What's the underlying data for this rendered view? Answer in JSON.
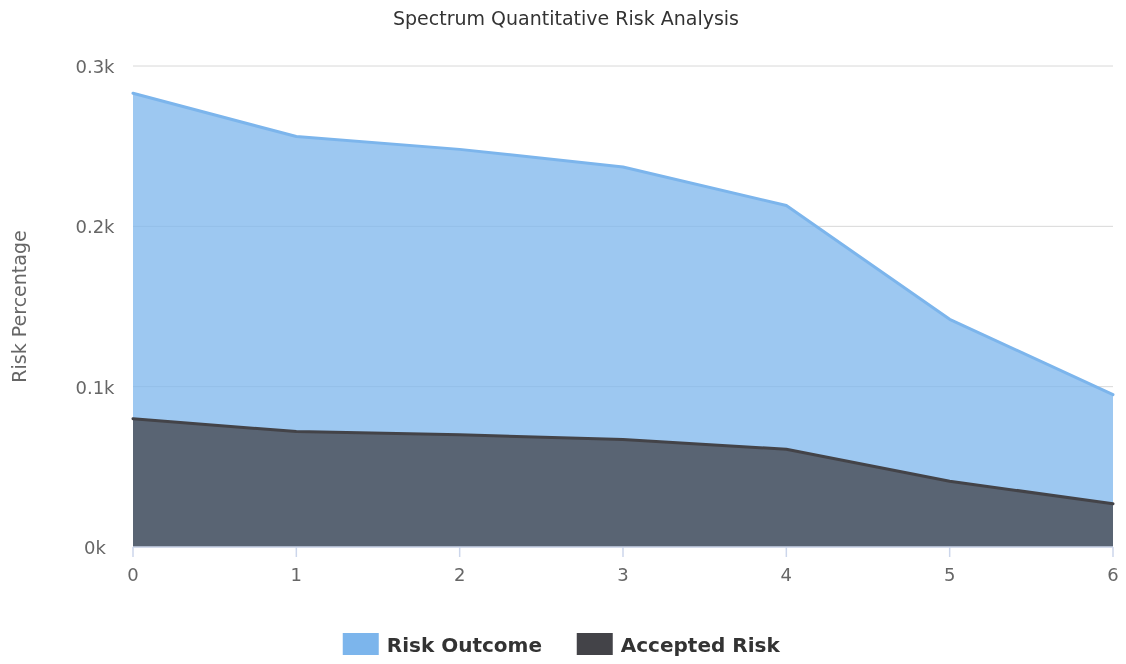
{
  "chart_data": {
    "type": "area",
    "title": "Spectrum Quantitative Risk Analysis",
    "ylabel": "Risk Percentage",
    "x": [
      0,
      1,
      2,
      3,
      4,
      5,
      6
    ],
    "series": [
      {
        "name": "Risk Outcome",
        "color": "#7cb5ec",
        "values": [
          283,
          256,
          248,
          237,
          213,
          142,
          95
        ]
      },
      {
        "name": "Accepted Risk",
        "color": "#434348",
        "values": [
          80,
          72,
          70,
          67,
          61,
          41,
          27
        ]
      }
    ],
    "xlim": [
      0,
      6
    ],
    "xticks": [
      0,
      1,
      2,
      3,
      4,
      5,
      6
    ],
    "ylim": [
      0,
      300
    ],
    "yticks": [
      {
        "value": 0,
        "label": "0k"
      },
      {
        "value": 100,
        "label": "0.1k"
      },
      {
        "value": 200,
        "label": "0.2k"
      },
      {
        "value": 300,
        "label": "0.3k"
      }
    ],
    "grid": "y",
    "legend": "bottom",
    "marker": "none"
  }
}
